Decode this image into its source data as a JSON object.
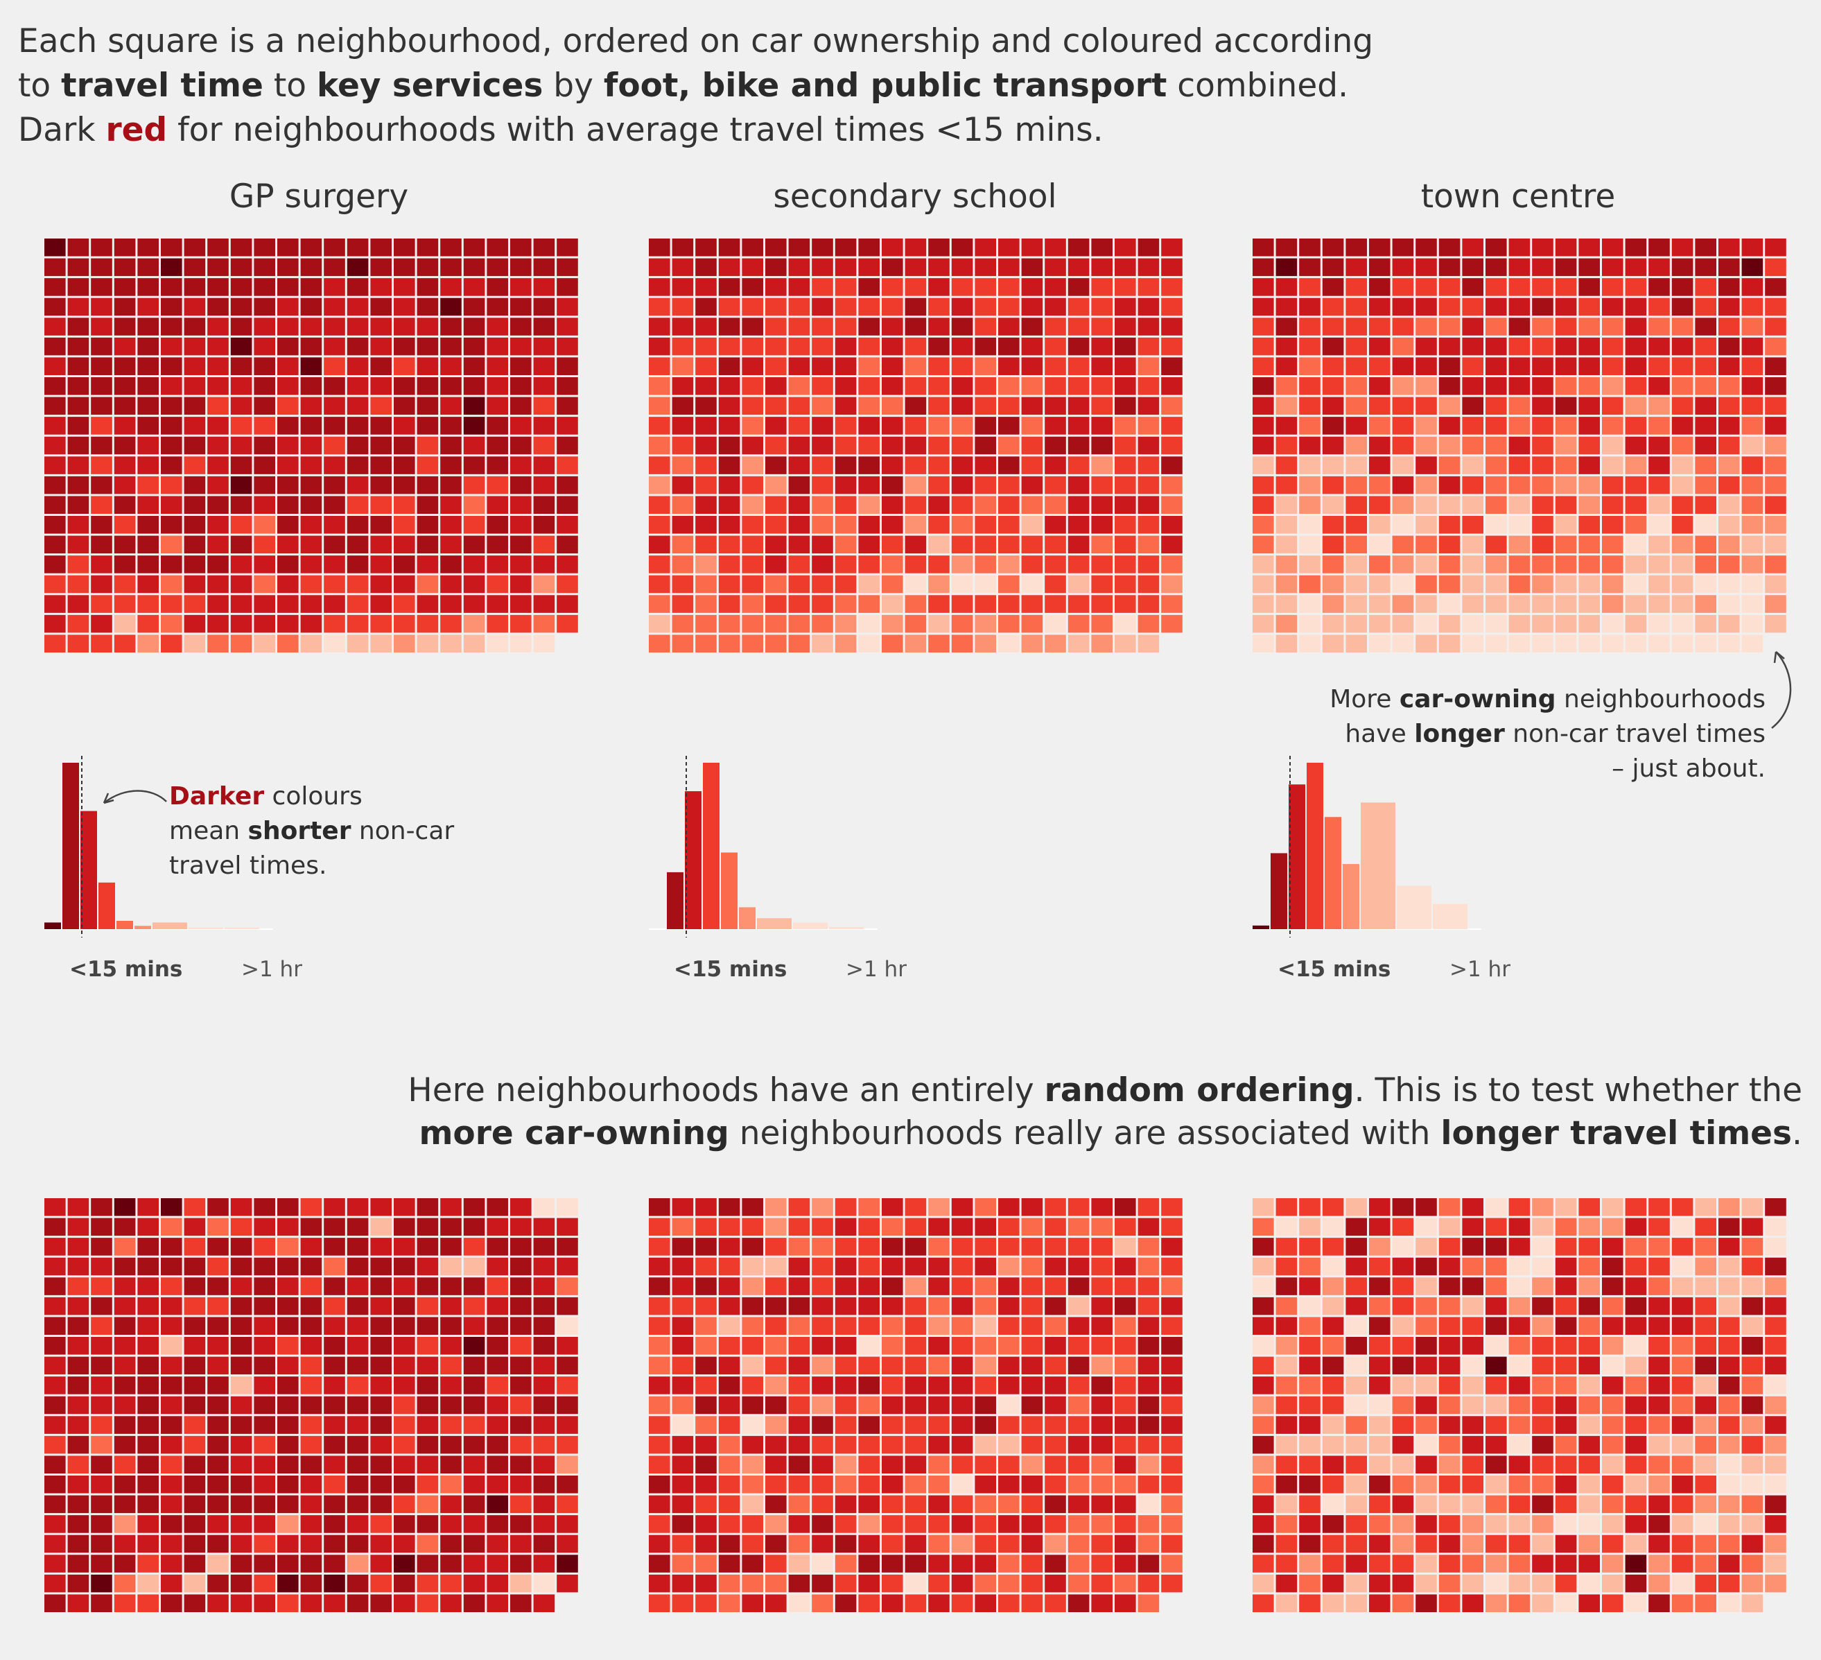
{
  "intro": {
    "line1": "Each square is a neighbourhood, ordered on car ownership and coloured according",
    "line2": [
      {
        "t": "to ",
        "s": ""
      },
      {
        "t": "travel time",
        "s": "b"
      },
      {
        "t": " to ",
        "s": ""
      },
      {
        "t": "key services",
        "s": "b"
      },
      {
        "t": " by ",
        "s": ""
      },
      {
        "t": "foot, bike and public transport",
        "s": "b"
      },
      {
        "t": " combined.",
        "s": ""
      }
    ],
    "line3": [
      {
        "t": "Dark ",
        "s": ""
      },
      {
        "t": "red",
        "s": "red"
      },
      {
        "t": " for neighbourhoods with average travel times <15 mins.",
        "s": ""
      }
    ]
  },
  "panels": [
    {
      "title": "GP surgery"
    },
    {
      "title": "secondary school"
    },
    {
      "title": "town centre"
    }
  ],
  "annotations": {
    "darker": [
      [
        {
          "t": "Darker",
          "s": "red"
        },
        {
          "t": " colours",
          "s": ""
        }
      ],
      [
        {
          "t": "mean ",
          "s": ""
        },
        {
          "t": "shorter",
          "s": "b"
        },
        {
          "t": " non-car",
          "s": ""
        }
      ],
      [
        {
          "t": "travel times.",
          "s": ""
        }
      ]
    ],
    "car_owning": [
      [
        {
          "t": "More ",
          "s": ""
        },
        {
          "t": "car-owning",
          "s": "b"
        },
        {
          "t": " neighbourhoods",
          "s": ""
        }
      ],
      [
        {
          "t": "have ",
          "s": ""
        },
        {
          "t": "longer",
          "s": "b"
        },
        {
          "t": " non-car travel times",
          "s": ""
        }
      ],
      [
        {
          "t": "– just about.",
          "s": ""
        }
      ]
    ],
    "random": [
      [
        {
          "t": "Here neighbourhoods have an entirely ",
          "s": ""
        },
        {
          "t": "random ordering",
          "s": "b"
        },
        {
          "t": ". This is to test whether the",
          "s": ""
        }
      ],
      [
        {
          "t": "more car-owning",
          "s": "b"
        },
        {
          "t": " neighbourhoods really are associated with ",
          "s": ""
        },
        {
          "t": "longer travel times",
          "s": "b"
        },
        {
          "t": ".",
          "s": ""
        }
      ]
    ]
  },
  "colors": {
    "background": "#f0f0f0",
    "scale": [
      "#67000d",
      "#a50f15",
      "#cb181d",
      "#ef3b2c",
      "#fb6a4a",
      "#fc9272",
      "#fcbba1",
      "#fee0d2"
    ]
  },
  "chart_data": [
    {
      "type": "histogram",
      "panel": "GP surgery",
      "x_tick_labels": [
        "<15 mins",
        ">1 hr"
      ],
      "threshold_label": "<15 mins",
      "bins_color_index": [
        0,
        1,
        2,
        3,
        4,
        5,
        6,
        7,
        7
      ],
      "values": [
        4,
        100,
        71,
        28,
        5,
        2,
        4,
        1,
        1
      ],
      "grid_rows": 21,
      "grid_cols": 23,
      "grid_last_row_count": 22,
      "ordering": "car ownership"
    },
    {
      "type": "histogram",
      "panel": "secondary school",
      "x_tick_labels": [
        "<15 mins",
        ">1 hr"
      ],
      "threshold_label": "<15 mins",
      "bins_color_index": [
        0,
        1,
        2,
        3,
        4,
        5,
        6,
        7,
        7
      ],
      "values": [
        0,
        26,
        63,
        76,
        35,
        10,
        5,
        3,
        1
      ],
      "grid_rows": 21,
      "grid_cols": 23,
      "grid_last_row_count": 22,
      "ordering": "car ownership"
    },
    {
      "type": "histogram",
      "panel": "town centre",
      "x_tick_labels": [
        "<15 mins",
        ">1 hr"
      ],
      "threshold_label": "<15 mins",
      "bins_color_index": [
        0,
        1,
        2,
        3,
        4,
        5,
        6,
        7,
        7
      ],
      "values": [
        1,
        21,
        40,
        46,
        31,
        18,
        35,
        12,
        7
      ],
      "grid_rows": 21,
      "grid_cols": 23,
      "grid_last_row_count": 22,
      "ordering": "car ownership"
    },
    {
      "type": "heatmap",
      "panel": "GP surgery",
      "ordering": "random",
      "grid_rows": 21,
      "grid_cols": 23,
      "grid_last_row_count": 22
    },
    {
      "type": "heatmap",
      "panel": "secondary school",
      "ordering": "random",
      "grid_rows": 21,
      "grid_cols": 23,
      "grid_last_row_count": 22
    },
    {
      "type": "heatmap",
      "panel": "town centre",
      "ordering": "random",
      "grid_rows": 21,
      "grid_cols": 23,
      "grid_last_row_count": 22
    }
  ]
}
